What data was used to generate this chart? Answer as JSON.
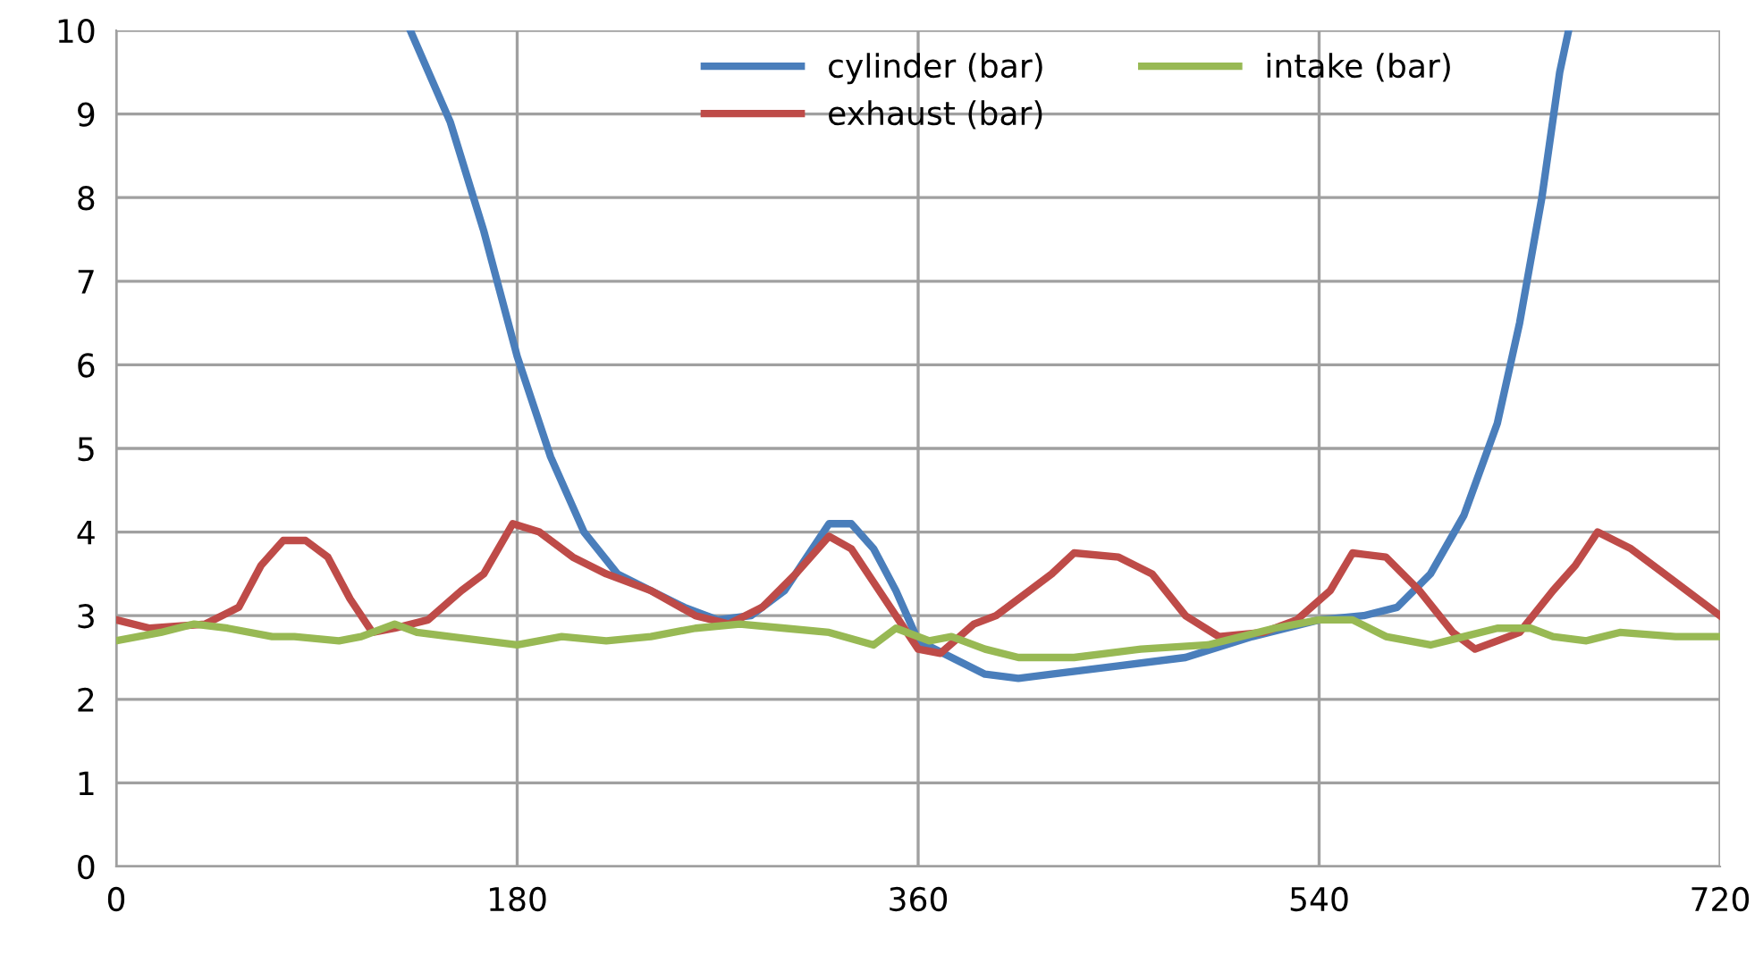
{
  "chart_data": {
    "type": "line",
    "xlim": [
      0,
      720
    ],
    "xticks": [
      0,
      180,
      360,
      540,
      720
    ],
    "ylim": [
      0,
      10
    ],
    "yticks": [
      0,
      1,
      2,
      3,
      4,
      5,
      6,
      7,
      8,
      9,
      10
    ],
    "grid": true,
    "legend": "top",
    "marker": "none",
    "line_style": "solid",
    "series": [
      {
        "name": "cylinder (bar)",
        "color": "#4a7ebb",
        "x": [
          132,
          150,
          165,
          180,
          195,
          210,
          225,
          240,
          255,
          270,
          285,
          300,
          310,
          320,
          330,
          340,
          350,
          360,
          375,
          390,
          405,
          420,
          450,
          480,
          510,
          540,
          560,
          575,
          590,
          605,
          620,
          630,
          640,
          648,
          652
        ],
        "values": [
          10,
          8.9,
          7.6,
          6.1,
          4.9,
          4.0,
          3.5,
          3.3,
          3.1,
          2.95,
          3.0,
          3.3,
          3.7,
          4.1,
          4.1,
          3.8,
          3.3,
          2.7,
          2.5,
          2.3,
          2.25,
          2.3,
          2.4,
          2.5,
          2.75,
          2.95,
          3.0,
          3.1,
          3.5,
          4.2,
          5.3,
          6.5,
          8.0,
          9.5,
          10
        ]
      },
      {
        "name": "exhaust (bar)",
        "color": "#be4b48",
        "x": [
          0,
          15,
          40,
          55,
          65,
          75,
          85,
          95,
          105,
          115,
          125,
          140,
          155,
          165,
          178,
          190,
          205,
          220,
          240,
          260,
          275,
          290,
          305,
          320,
          330,
          345,
          360,
          370,
          385,
          395,
          410,
          420,
          430,
          450,
          465,
          480,
          495,
          515,
          530,
          545,
          555,
          570,
          585,
          600,
          610,
          620,
          630,
          645,
          655,
          665,
          680,
          695,
          705,
          720
        ],
        "values": [
          2.95,
          2.85,
          2.9,
          3.1,
          3.6,
          3.9,
          3.9,
          3.7,
          3.2,
          2.8,
          2.85,
          2.95,
          3.3,
          3.5,
          4.1,
          4.0,
          3.7,
          3.5,
          3.3,
          3.0,
          2.9,
          3.1,
          3.5,
          3.95,
          3.8,
          3.2,
          2.6,
          2.55,
          2.9,
          3.0,
          3.3,
          3.5,
          3.75,
          3.7,
          3.5,
          3.0,
          2.75,
          2.8,
          2.95,
          3.3,
          3.75,
          3.7,
          3.3,
          2.8,
          2.6,
          2.7,
          2.8,
          3.3,
          3.6,
          4.0,
          3.8,
          3.5,
          3.3,
          3.0
        ]
      },
      {
        "name": "intake (bar)",
        "color": "#98b954",
        "x": [
          0,
          20,
          35,
          50,
          70,
          80,
          100,
          110,
          125,
          135,
          150,
          180,
          200,
          220,
          240,
          260,
          280,
          300,
          320,
          340,
          350,
          365,
          375,
          390,
          405,
          430,
          460,
          490,
          520,
          540,
          555,
          570,
          590,
          605,
          620,
          635,
          645,
          660,
          675,
          700,
          720
        ],
        "values": [
          2.7,
          2.8,
          2.9,
          2.85,
          2.75,
          2.75,
          2.7,
          2.75,
          2.9,
          2.8,
          2.75,
          2.65,
          2.75,
          2.7,
          2.75,
          2.85,
          2.9,
          2.85,
          2.8,
          2.65,
          2.85,
          2.7,
          2.75,
          2.6,
          2.5,
          2.5,
          2.6,
          2.65,
          2.85,
          2.95,
          2.95,
          2.75,
          2.65,
          2.75,
          2.85,
          2.85,
          2.75,
          2.7,
          2.8,
          2.75,
          2.75
        ]
      }
    ]
  }
}
